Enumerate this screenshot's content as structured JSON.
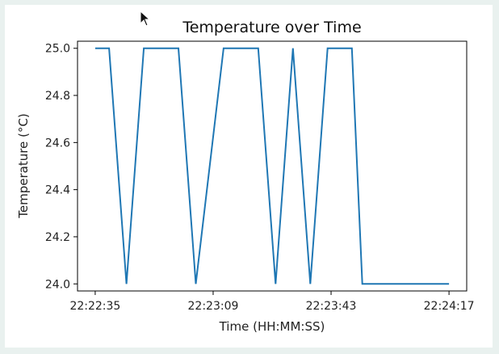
{
  "chart_data": {
    "type": "line",
    "title": "Temperature over Time",
    "xlabel": "Time (HH:MM:SS)",
    "ylabel": "Temperature (°C)",
    "ylim": [
      23.97,
      25.03
    ],
    "y_ticks": [
      24.0,
      24.2,
      24.4,
      24.6,
      24.8,
      25.0
    ],
    "y_tick_labels": [
      "24.0",
      "24.2",
      "24.4",
      "24.6",
      "24.8",
      "25.0"
    ],
    "x_ticks": [
      "22:22:35",
      "22:23:09",
      "22:23:43",
      "22:24:17"
    ],
    "x_tick_labels": [
      "22:22:35",
      "22:23:09",
      "22:23:43",
      "22:24:17"
    ],
    "grid": false,
    "series": [
      {
        "color": "#1f77b4",
        "x": [
          "22:22:35",
          "22:22:39",
          "22:22:44",
          "22:22:49",
          "22:22:59",
          "22:23:04",
          "22:23:12",
          "22:23:22",
          "22:23:27",
          "22:23:32",
          "22:23:37",
          "22:23:42",
          "22:23:49",
          "22:23:52",
          "22:24:17"
        ],
        "y": [
          25.0,
          25.0,
          24.0,
          25.0,
          25.0,
          24.0,
          25.0,
          25.0,
          24.0,
          25.0,
          24.0,
          25.0,
          25.0,
          24.0,
          24.0
        ]
      }
    ]
  }
}
